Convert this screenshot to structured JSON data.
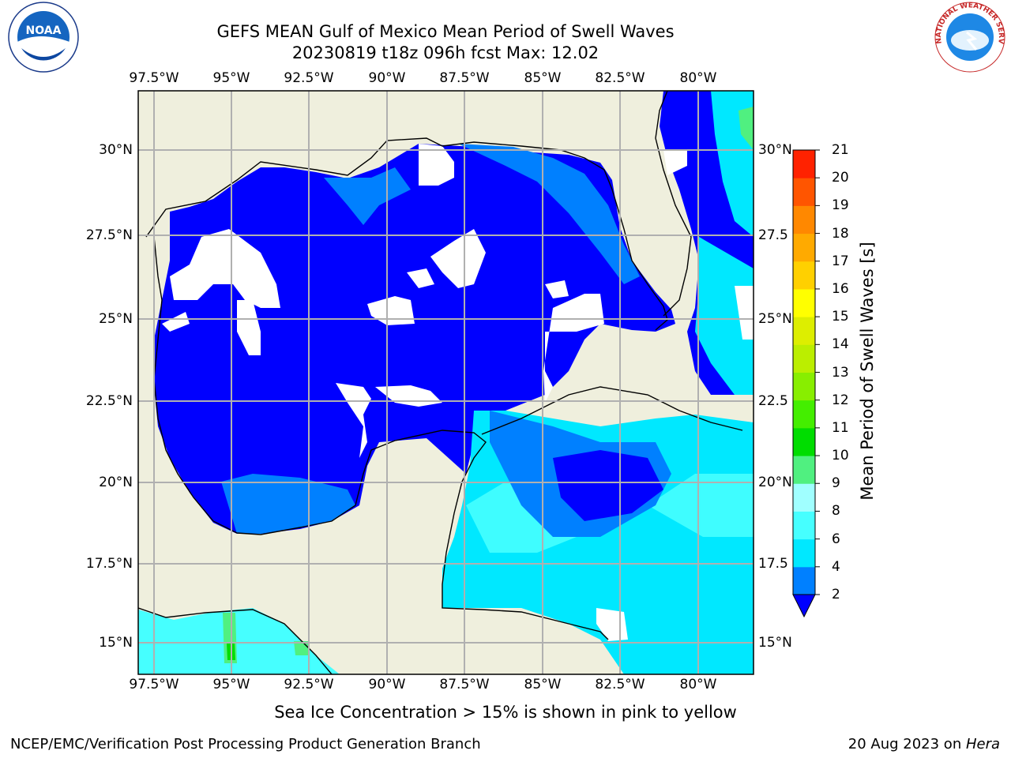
{
  "header": {
    "title_line1": "GEFS MEAN Gulf of Mexico Mean Period of Swell Waves",
    "title_line2": "20230819 t18z 096h fcst   Max: 12.02"
  },
  "logos": {
    "left": "NOAA",
    "right": "NATIONAL WEATHER SERVICE"
  },
  "map": {
    "lon_labels": [
      "97.5°W",
      "95°W",
      "92.5°W",
      "90°W",
      "87.5°W",
      "85°W",
      "82.5°W",
      "80°W"
    ],
    "lat_labels_left": [
      "30°N",
      "27.5°N",
      "25°N",
      "22.5°N",
      "20°N",
      "17.5°N",
      "15°N"
    ],
    "lat_labels_right": [
      "30°N",
      "27.5",
      "25°N",
      "22.5",
      "20°N",
      "17.5",
      "15°N"
    ],
    "lon_range": [
      -98,
      -78.25
    ],
    "lat_range": [
      14,
      31.5
    ],
    "colors": {
      "land": "#efefdd",
      "no_data": "#ffffff",
      "gridline": "#b0b0b0"
    }
  },
  "colorbar": {
    "label": "Mean Period of Swell Waves [s]",
    "ticks": [
      "2",
      "4",
      "6",
      "8",
      "9",
      "10",
      "11",
      "12",
      "13",
      "14",
      "15",
      "16",
      "17",
      "18",
      "19",
      "20",
      "21"
    ],
    "colors": [
      "#0000ff",
      "#0080ff",
      "#00e8ff",
      "#46ffff",
      "#a0ffff",
      "#50f080",
      "#00dd00",
      "#44ee00",
      "#88ee00",
      "#bbee00",
      "#ddee00",
      "#ffff00",
      "#ffd000",
      "#ffaa00",
      "#ff8800",
      "#ff5500",
      "#ff2200",
      "#ff0000"
    ]
  },
  "footer": {
    "note": "Sea Ice Concentration > 15% is shown in pink to yellow",
    "credit_left": "NCEP/EMC/Verification Post Processing Product Generation Branch",
    "credit_date": "20 Aug 2023 on ",
    "credit_host": "Hera"
  }
}
